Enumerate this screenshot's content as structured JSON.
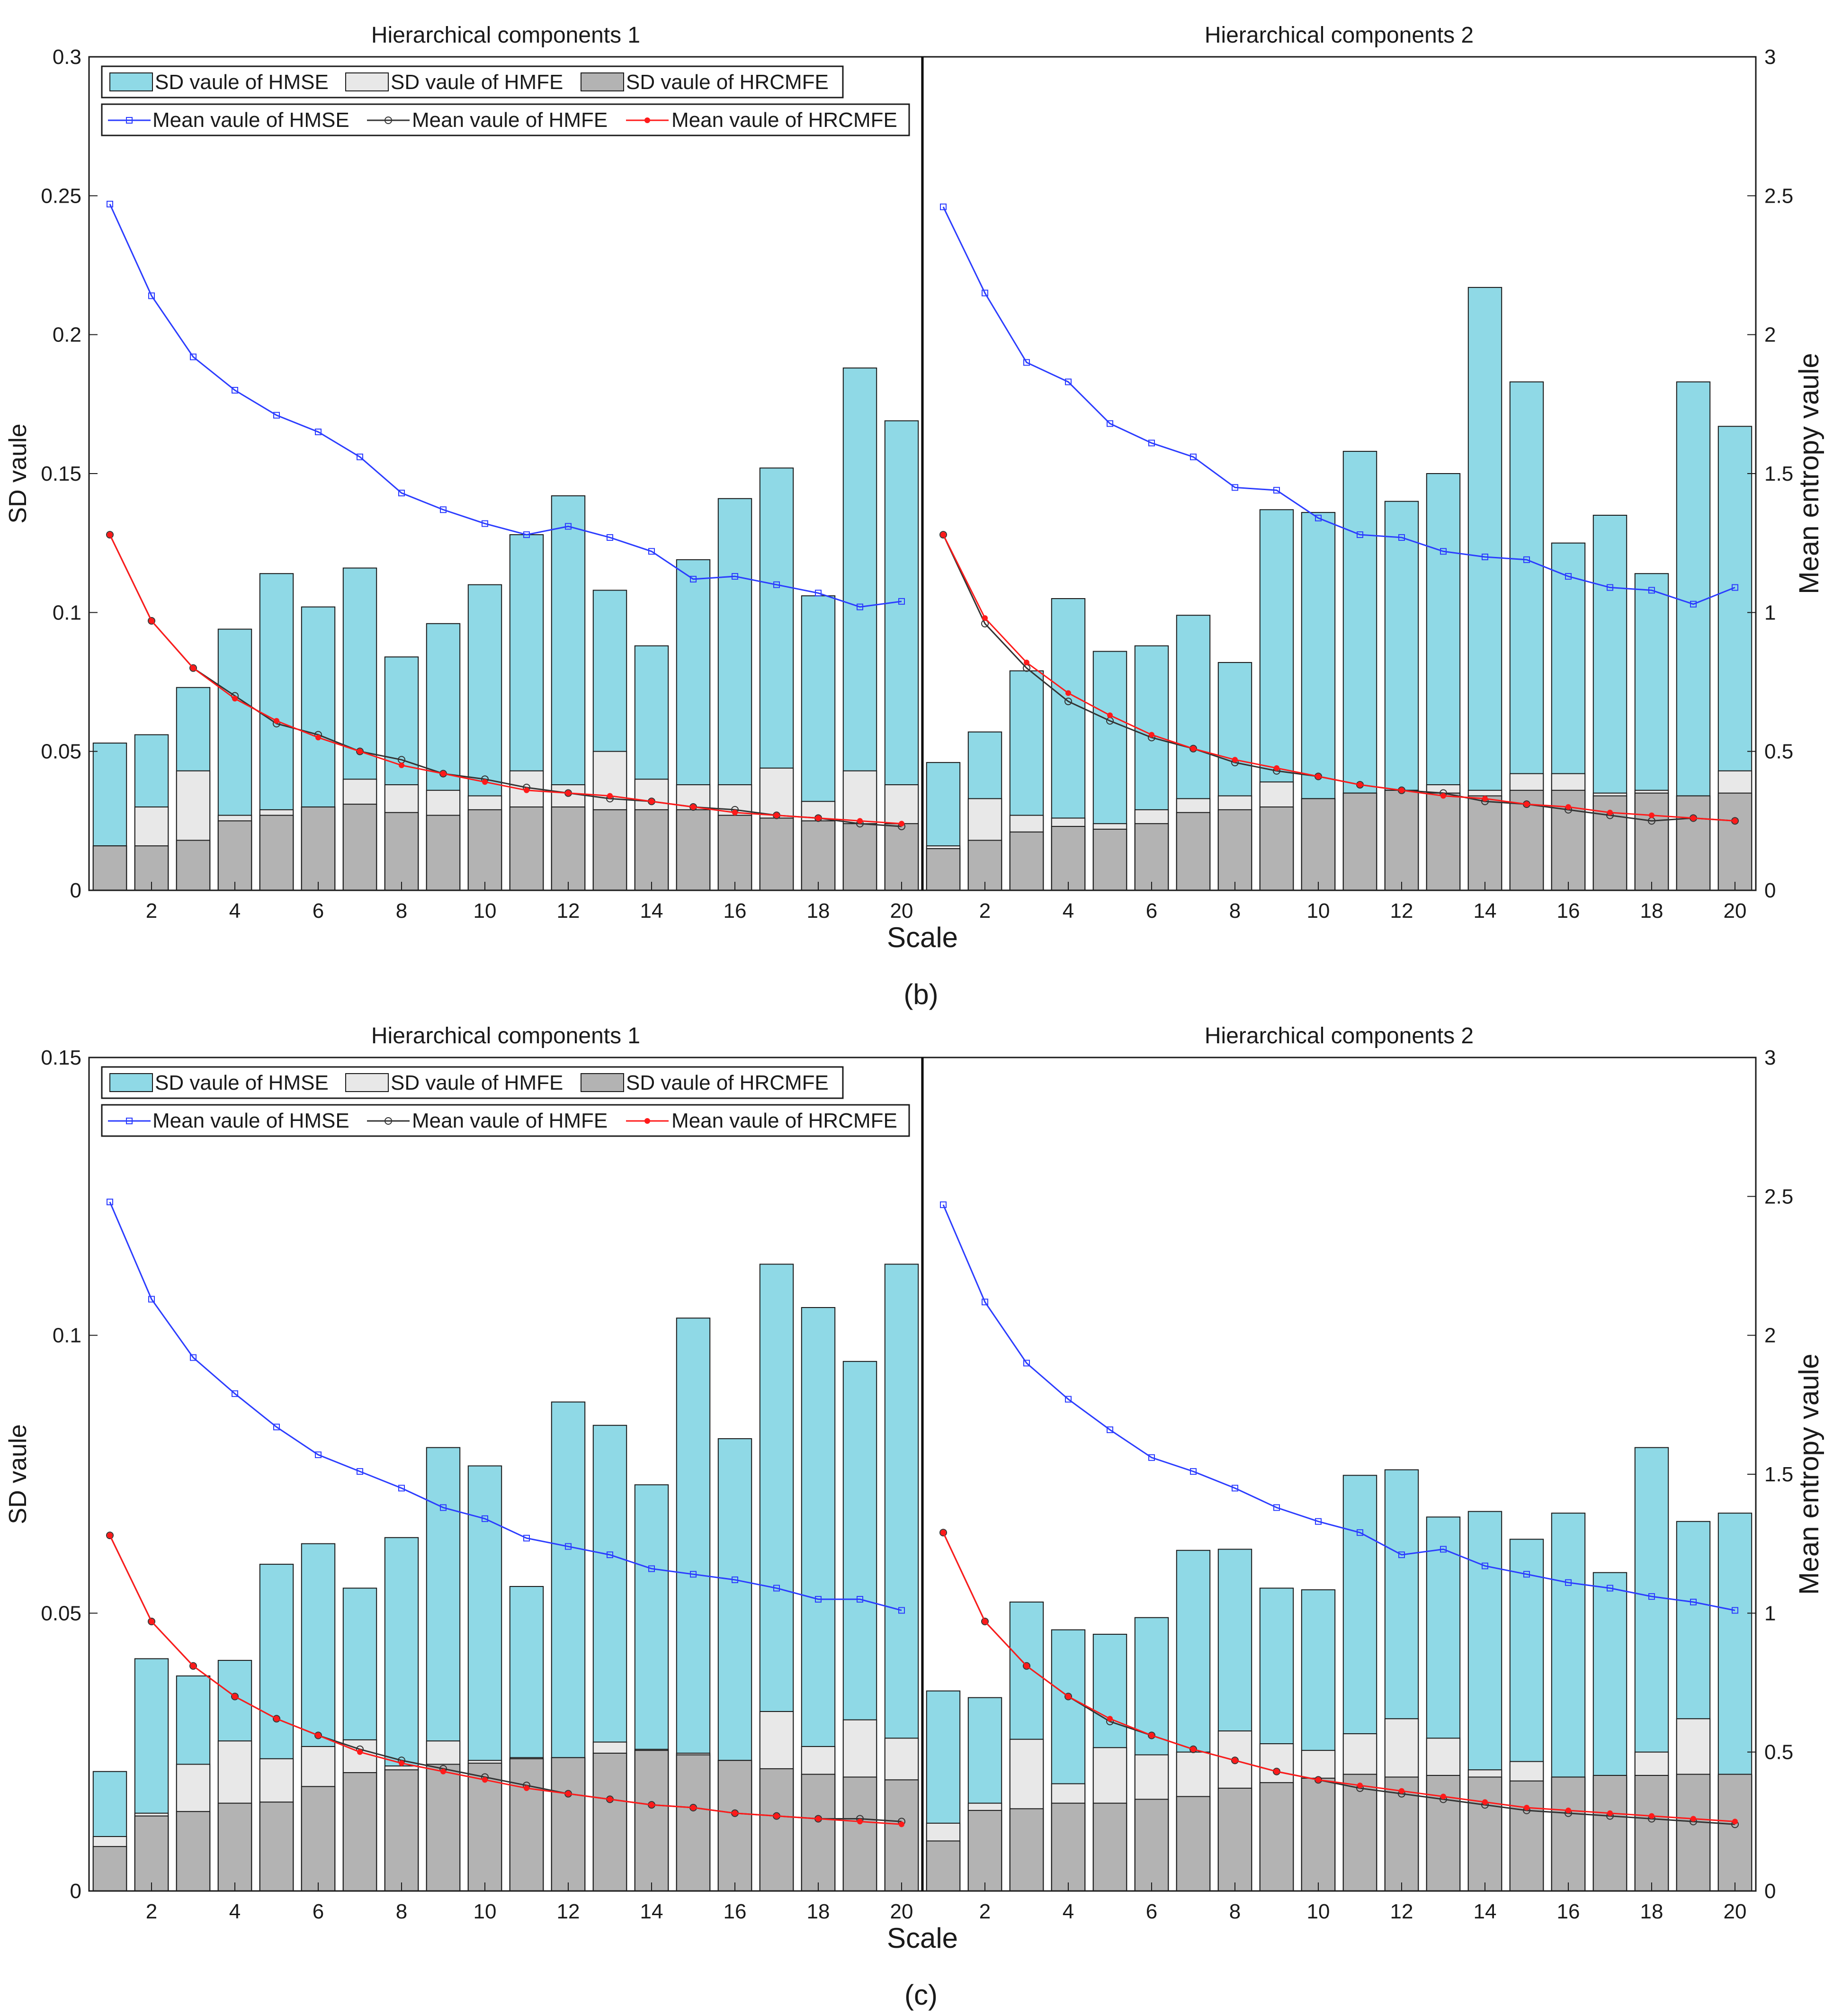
{
  "figure": {
    "panel_b_label": "(b)",
    "panel_c_label": "(c)",
    "xlabel": "Scale",
    "ylabel_left": "SD vaule",
    "ylabel_right": "Mean entropy vaule",
    "sub_titles": [
      "Hierarchical components 1",
      "Hierarchical components 2"
    ]
  },
  "colors": {
    "hmse_bar": "#8fd9e6",
    "hmfe_bar": "#e8e8e8",
    "hrcmfe_bar": "#b3b3b3",
    "hmse_line": "#2b3cff",
    "hmfe_line": "#333333",
    "hrcmfe_line": "#ff1a1a"
  },
  "chart_data": [
    {
      "type": "bar",
      "panel": "b",
      "title": "Hierarchical components 1",
      "xlabel": "Scale",
      "ylabel": "SD vaule",
      "y2label": "Mean entropy vaule",
      "xlim": [
        0.5,
        20.5
      ],
      "x_ticks": [
        2,
        4,
        6,
        8,
        10,
        12,
        14,
        16,
        18,
        20
      ],
      "ylim": [
        0,
        0.3
      ],
      "y_ticks": [
        0,
        0.05,
        0.1,
        0.15,
        0.2,
        0.25,
        0.3
      ],
      "y2lim": [
        0,
        3
      ],
      "y2_ticks": [
        0,
        0.5,
        1,
        1.5,
        2,
        2.5,
        3
      ],
      "legend_position": "top-left",
      "categories": [
        1,
        2,
        3,
        4,
        5,
        6,
        7,
        8,
        9,
        10,
        11,
        12,
        13,
        14,
        15,
        16,
        17,
        18,
        19,
        20
      ],
      "bar_series": [
        {
          "name": "SD vaule of HMSE",
          "values": [
            0.053,
            0.056,
            0.073,
            0.094,
            0.114,
            0.102,
            0.116,
            0.084,
            0.096,
            0.11,
            0.128,
            0.142,
            0.108,
            0.088,
            0.119,
            0.141,
            0.152,
            0.106,
            0.188,
            0.169
          ]
        },
        {
          "name": "SD vaule of HMFE",
          "values": [
            0.016,
            0.03,
            0.043,
            0.027,
            0.029,
            0.03,
            0.04,
            0.038,
            0.036,
            0.034,
            0.043,
            0.038,
            0.05,
            0.04,
            0.038,
            0.038,
            0.044,
            0.032,
            0.043,
            0.038
          ]
        },
        {
          "name": "SD vaule of HRCMFE",
          "values": [
            0.016,
            0.016,
            0.018,
            0.025,
            0.027,
            0.03,
            0.031,
            0.028,
            0.027,
            0.029,
            0.03,
            0.03,
            0.029,
            0.029,
            0.029,
            0.027,
            0.026,
            0.025,
            0.024,
            0.024
          ]
        }
      ],
      "line_series": [
        {
          "name": "Mean vaule of HMSE",
          "values": [
            2.47,
            2.14,
            1.92,
            1.8,
            1.71,
            1.65,
            1.56,
            1.43,
            1.37,
            1.32,
            1.28,
            1.31,
            1.27,
            1.22,
            1.12,
            1.13,
            1.1,
            1.07,
            1.02,
            1.04
          ]
        },
        {
          "name": "Mean vaule of HMFE",
          "values": [
            1.28,
            0.97,
            0.8,
            0.7,
            0.6,
            0.56,
            0.5,
            0.47,
            0.42,
            0.4,
            0.37,
            0.35,
            0.33,
            0.32,
            0.3,
            0.29,
            0.27,
            0.26,
            0.24,
            0.23
          ]
        },
        {
          "name": "Mean vaule of HRCMFE",
          "values": [
            1.28,
            0.97,
            0.8,
            0.69,
            0.61,
            0.55,
            0.5,
            0.45,
            0.42,
            0.39,
            0.36,
            0.35,
            0.34,
            0.32,
            0.3,
            0.28,
            0.27,
            0.26,
            0.25,
            0.24
          ]
        }
      ]
    },
    {
      "type": "bar",
      "panel": "b",
      "title": "Hierarchical components 2",
      "xlabel": "Scale",
      "ylabel": "SD vaule",
      "y2label": "Mean entropy vaule",
      "xlim": [
        0.5,
        20.5
      ],
      "x_ticks": [
        2,
        4,
        6,
        8,
        10,
        12,
        14,
        16,
        18,
        20
      ],
      "ylim": [
        0,
        0.3
      ],
      "y_ticks": [
        0,
        0.05,
        0.1,
        0.15,
        0.2,
        0.25,
        0.3
      ],
      "y2lim": [
        0,
        3
      ],
      "y2_ticks": [
        0,
        0.5,
        1,
        1.5,
        2,
        2.5,
        3
      ],
      "categories": [
        1,
        2,
        3,
        4,
        5,
        6,
        7,
        8,
        9,
        10,
        11,
        12,
        13,
        14,
        15,
        16,
        17,
        18,
        19,
        20
      ],
      "bar_series": [
        {
          "name": "SD vaule of HMSE",
          "values": [
            0.046,
            0.057,
            0.079,
            0.105,
            0.086,
            0.088,
            0.099,
            0.082,
            0.137,
            0.136,
            0.158,
            0.14,
            0.15,
            0.217,
            0.183,
            0.125,
            0.135,
            0.114,
            0.183,
            0.167
          ]
        },
        {
          "name": "SD vaule of HMFE",
          "values": [
            0.016,
            0.033,
            0.027,
            0.026,
            0.024,
            0.029,
            0.033,
            0.034,
            0.039,
            0.033,
            0.035,
            0.036,
            0.038,
            0.036,
            0.042,
            0.042,
            0.035,
            0.036,
            0.034,
            0.043
          ]
        },
        {
          "name": "SD vaule of HRCMFE",
          "values": [
            0.015,
            0.018,
            0.021,
            0.023,
            0.022,
            0.024,
            0.028,
            0.029,
            0.03,
            0.033,
            0.035,
            0.036,
            0.035,
            0.034,
            0.036,
            0.036,
            0.034,
            0.035,
            0.034,
            0.035
          ]
        }
      ],
      "line_series": [
        {
          "name": "Mean vaule of HMSE",
          "values": [
            2.46,
            2.15,
            1.9,
            1.83,
            1.68,
            1.61,
            1.56,
            1.45,
            1.44,
            1.34,
            1.28,
            1.27,
            1.22,
            1.2,
            1.19,
            1.13,
            1.09,
            1.08,
            1.03,
            1.09
          ]
        },
        {
          "name": "Mean vaule of HMFE",
          "values": [
            1.28,
            0.96,
            0.8,
            0.68,
            0.61,
            0.55,
            0.51,
            0.46,
            0.43,
            0.41,
            0.38,
            0.36,
            0.35,
            0.32,
            0.31,
            0.29,
            0.27,
            0.25,
            0.26,
            0.25
          ]
        },
        {
          "name": "Mean vaule of HRCMFE",
          "values": [
            1.28,
            0.98,
            0.82,
            0.71,
            0.63,
            0.56,
            0.51,
            0.47,
            0.44,
            0.41,
            0.38,
            0.36,
            0.34,
            0.33,
            0.31,
            0.3,
            0.28,
            0.27,
            0.26,
            0.25
          ]
        }
      ]
    },
    {
      "type": "bar",
      "panel": "c",
      "title": "Hierarchical components 1",
      "xlabel": "Scale",
      "ylabel": "SD vaule",
      "y2label": "Mean entropy vaule",
      "xlim": [
        0.5,
        20.5
      ],
      "x_ticks": [
        2,
        4,
        6,
        8,
        10,
        12,
        14,
        16,
        18,
        20
      ],
      "ylim": [
        0,
        0.15
      ],
      "y_ticks": [
        0,
        0.05,
        0.1,
        0.15
      ],
      "y2lim": [
        0,
        3
      ],
      "y2_ticks": [
        0,
        0.5,
        1,
        1.5,
        2,
        2.5,
        3
      ],
      "legend_position": "top-left",
      "categories": [
        1,
        2,
        3,
        4,
        5,
        6,
        7,
        8,
        9,
        10,
        11,
        12,
        13,
        14,
        15,
        16,
        17,
        18,
        19,
        20
      ],
      "bar_series": [
        {
          "name": "SD vaule of HMSE",
          "values": [
            0.0215,
            0.0418,
            0.0387,
            0.0415,
            0.0588,
            0.0625,
            0.0545,
            0.0636,
            0.0798,
            0.0765,
            0.0548,
            0.088,
            0.0838,
            0.0731,
            0.1031,
            0.0814,
            0.1128,
            0.105,
            0.0953,
            0.1128
          ]
        },
        {
          "name": "SD vaule of HMFE",
          "values": [
            0.0098,
            0.014,
            0.0228,
            0.027,
            0.0238,
            0.026,
            0.0272,
            0.0225,
            0.027,
            0.0235,
            0.024,
            0.024,
            0.0268,
            0.0255,
            0.0248,
            0.0235,
            0.0323,
            0.026,
            0.0308,
            0.0275
          ]
        },
        {
          "name": "SD vaule of HRCMFE",
          "values": [
            0.008,
            0.0135,
            0.0143,
            0.0158,
            0.016,
            0.0188,
            0.0213,
            0.0218,
            0.0228,
            0.023,
            0.0238,
            0.024,
            0.0248,
            0.0253,
            0.0245,
            0.0235,
            0.022,
            0.021,
            0.0205,
            0.02
          ]
        }
      ],
      "line_series": [
        {
          "name": "Mean vaule of HMSE",
          "values": [
            2.48,
            2.13,
            1.92,
            1.79,
            1.67,
            1.57,
            1.51,
            1.45,
            1.38,
            1.34,
            1.27,
            1.24,
            1.21,
            1.16,
            1.14,
            1.12,
            1.09,
            1.05,
            1.05,
            1.01
          ]
        },
        {
          "name": "Mean vaule of HMFE",
          "values": [
            1.28,
            0.97,
            0.81,
            0.7,
            0.62,
            0.56,
            0.51,
            0.47,
            0.44,
            0.41,
            0.38,
            0.35,
            0.33,
            0.31,
            0.3,
            0.28,
            0.27,
            0.26,
            0.26,
            0.25
          ]
        },
        {
          "name": "Mean vaule of HRCMFE",
          "values": [
            1.28,
            0.97,
            0.81,
            0.7,
            0.62,
            0.56,
            0.5,
            0.46,
            0.43,
            0.4,
            0.37,
            0.35,
            0.33,
            0.31,
            0.3,
            0.28,
            0.27,
            0.26,
            0.25,
            0.24
          ]
        }
      ]
    },
    {
      "type": "bar",
      "panel": "c",
      "title": "Hierarchical components 2",
      "xlabel": "Scale",
      "ylabel": "SD vaule",
      "y2label": "Mean entropy vaule",
      "xlim": [
        0.5,
        20.5
      ],
      "x_ticks": [
        2,
        4,
        6,
        8,
        10,
        12,
        14,
        16,
        18,
        20
      ],
      "ylim": [
        0,
        0.15
      ],
      "y_ticks": [
        0,
        0.05,
        0.1,
        0.15
      ],
      "y2lim": [
        0,
        3
      ],
      "y2_ticks": [
        0,
        0.5,
        1,
        1.5,
        2,
        2.5,
        3
      ],
      "categories": [
        1,
        2,
        3,
        4,
        5,
        6,
        7,
        8,
        9,
        10,
        11,
        12,
        13,
        14,
        15,
        16,
        17,
        18,
        19,
        20
      ],
      "bar_series": [
        {
          "name": "SD vaule of HMSE",
          "values": [
            0.036,
            0.0348,
            0.052,
            0.047,
            0.0462,
            0.0492,
            0.0613,
            0.0615,
            0.0545,
            0.0542,
            0.0748,
            0.0758,
            0.0673,
            0.0683,
            0.0633,
            0.068,
            0.0573,
            0.0798,
            0.0665,
            0.068
          ]
        },
        {
          "name": "SD vaule of HMFE",
          "values": [
            0.0122,
            0.0158,
            0.0273,
            0.0193,
            0.0258,
            0.0245,
            0.025,
            0.0288,
            0.0265,
            0.0253,
            0.0283,
            0.031,
            0.0275,
            0.0218,
            0.0233,
            0.0205,
            0.0205,
            0.025,
            0.031,
            0.0208
          ]
        },
        {
          "name": "SD vaule of HRCMFE",
          "values": [
            0.009,
            0.0145,
            0.0148,
            0.0158,
            0.0158,
            0.0165,
            0.017,
            0.0185,
            0.0195,
            0.0203,
            0.021,
            0.0205,
            0.0208,
            0.0205,
            0.0198,
            0.0205,
            0.0208,
            0.0208,
            0.021,
            0.021
          ]
        }
      ],
      "line_series": [
        {
          "name": "Mean vaule of HMSE",
          "values": [
            2.47,
            2.12,
            1.9,
            1.77,
            1.66,
            1.56,
            1.51,
            1.45,
            1.38,
            1.33,
            1.29,
            1.21,
            1.23,
            1.17,
            1.14,
            1.11,
            1.09,
            1.06,
            1.04,
            1.01
          ]
        },
        {
          "name": "Mean vaule of HMFE",
          "values": [
            1.29,
            0.97,
            0.81,
            0.7,
            0.61,
            0.56,
            0.51,
            0.47,
            0.43,
            0.4,
            0.37,
            0.35,
            0.33,
            0.31,
            0.29,
            0.28,
            0.27,
            0.26,
            0.25,
            0.24
          ]
        },
        {
          "name": "Mean vaule of HRCMFE",
          "values": [
            1.29,
            0.97,
            0.81,
            0.7,
            0.62,
            0.56,
            0.51,
            0.47,
            0.43,
            0.4,
            0.38,
            0.36,
            0.34,
            0.32,
            0.3,
            0.29,
            0.28,
            0.27,
            0.26,
            0.25
          ]
        }
      ]
    }
  ]
}
